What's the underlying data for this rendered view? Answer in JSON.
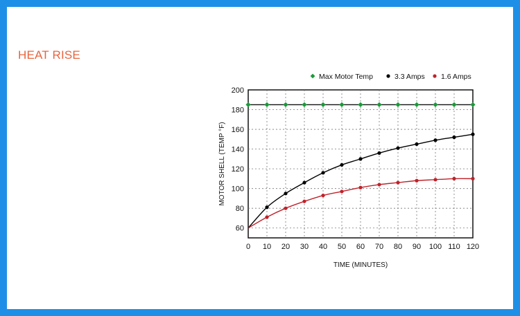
{
  "page": {
    "heading": "HEAT RISE",
    "background_color": "#1e8fe6",
    "heading_color": "#e8643c"
  },
  "chart_data": {
    "type": "line",
    "title": "",
    "xlabel": "TIME (MINUTES)",
    "ylabel": "MOTOR SHELL (TEMP °F)",
    "xlim": [
      0,
      120
    ],
    "ylim": [
      50,
      200
    ],
    "x_ticks": [
      0,
      10,
      20,
      30,
      40,
      50,
      60,
      70,
      80,
      90,
      100,
      110,
      120
    ],
    "y_ticks": [
      60,
      80,
      100,
      120,
      140,
      160,
      180,
      200
    ],
    "grid": true,
    "legend_position": "top",
    "x": [
      0,
      10,
      20,
      30,
      40,
      50,
      60,
      70,
      80,
      90,
      100,
      110,
      120
    ],
    "series": [
      {
        "name": "Max Motor Temp",
        "color": "#1a9a3a",
        "marker": "diamond",
        "values": [
          185,
          185,
          185,
          185,
          185,
          185,
          185,
          185,
          185,
          185,
          185,
          185,
          185
        ]
      },
      {
        "name": "3.3 Amps",
        "color": "#000000",
        "marker": "circle",
        "values": [
          60,
          81,
          95,
          106,
          116,
          124,
          130,
          136,
          141,
          145,
          149,
          152,
          155
        ]
      },
      {
        "name": "1.6 Amps",
        "color": "#c0222a",
        "marker": "circle",
        "values": [
          60,
          71,
          80,
          87,
          93,
          97,
          101,
          104,
          106,
          108,
          109,
          110,
          110
        ]
      }
    ]
  }
}
